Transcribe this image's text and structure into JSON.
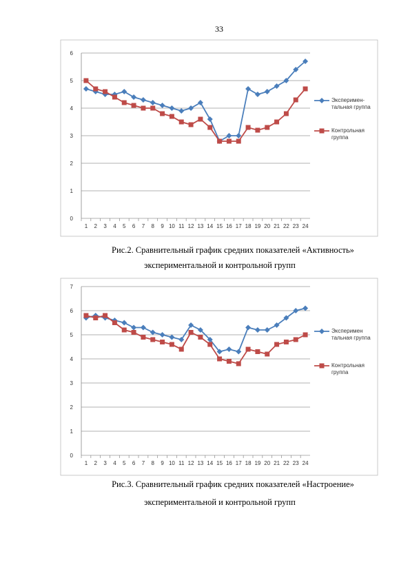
{
  "page_number": "33",
  "chart_data": [
    {
      "type": "line",
      "caption": [
        "Рис.2. Сравнительный график средних показателей «Активность»",
        "экспериментальной и контрольной групп"
      ],
      "categories": [
        "1",
        "2",
        "3",
        "4",
        "5",
        "6",
        "7",
        "8",
        "9",
        "10",
        "11",
        "12",
        "13",
        "14",
        "15",
        "16",
        "17",
        "18",
        "19",
        "20",
        "21",
        "22",
        "23",
        "24"
      ],
      "ylim": [
        0,
        6
      ],
      "yticks": [
        0,
        1,
        2,
        3,
        4,
        5,
        6
      ],
      "grid": true,
      "legend": "right",
      "series": [
        {
          "name": "Эксперимен- тальная группа",
          "color": "#4a7ebb",
          "marker": "diamond",
          "values": [
            4.7,
            4.6,
            4.5,
            4.5,
            4.6,
            4.4,
            4.3,
            4.2,
            4.1,
            4.0,
            3.9,
            4.0,
            4.2,
            3.6,
            2.8,
            3.0,
            3.0,
            4.7,
            4.5,
            4.6,
            4.8,
            5.0,
            5.4,
            5.7
          ]
        },
        {
          "name": "Контрольная группа",
          "color": "#be4b48",
          "marker": "square",
          "values": [
            5.0,
            4.7,
            4.6,
            4.4,
            4.2,
            4.1,
            4.0,
            4.0,
            3.8,
            3.7,
            3.5,
            3.4,
            3.6,
            3.3,
            2.8,
            2.8,
            2.8,
            3.3,
            3.2,
            3.3,
            3.5,
            3.8,
            4.3,
            4.7
          ]
        }
      ]
    },
    {
      "type": "line",
      "caption": [
        "Рис.3. Сравнительный график средних показателей «Настроение»",
        "экспериментальной и контрольной групп"
      ],
      "categories": [
        "1",
        "2",
        "3",
        "4",
        "5",
        "6",
        "7",
        "8",
        "9",
        "10",
        "11",
        "12",
        "13",
        "14",
        "15",
        "16",
        "17",
        "18",
        "19",
        "20",
        "21",
        "22",
        "23",
        "24"
      ],
      "ylim": [
        0,
        7
      ],
      "yticks": [
        0,
        1,
        2,
        3,
        4,
        5,
        6,
        7
      ],
      "grid": true,
      "legend": "right",
      "series": [
        {
          "name": "Эксперимен тальная группа",
          "color": "#4a7ebb",
          "marker": "diamond",
          "values": [
            5.7,
            5.8,
            5.7,
            5.6,
            5.5,
            5.3,
            5.3,
            5.1,
            5.0,
            4.9,
            4.8,
            5.4,
            5.2,
            4.8,
            4.3,
            4.4,
            4.3,
            5.3,
            5.2,
            5.2,
            5.4,
            5.7,
            6.0,
            6.1
          ]
        },
        {
          "name": "Контрольная группа",
          "color": "#be4b48",
          "marker": "square",
          "values": [
            5.8,
            5.7,
            5.8,
            5.5,
            5.2,
            5.1,
            4.9,
            4.8,
            4.7,
            4.6,
            4.4,
            5.1,
            4.9,
            4.6,
            4.0,
            3.9,
            3.8,
            4.4,
            4.3,
            4.2,
            4.6,
            4.7,
            4.8,
            5.0
          ]
        }
      ]
    }
  ]
}
